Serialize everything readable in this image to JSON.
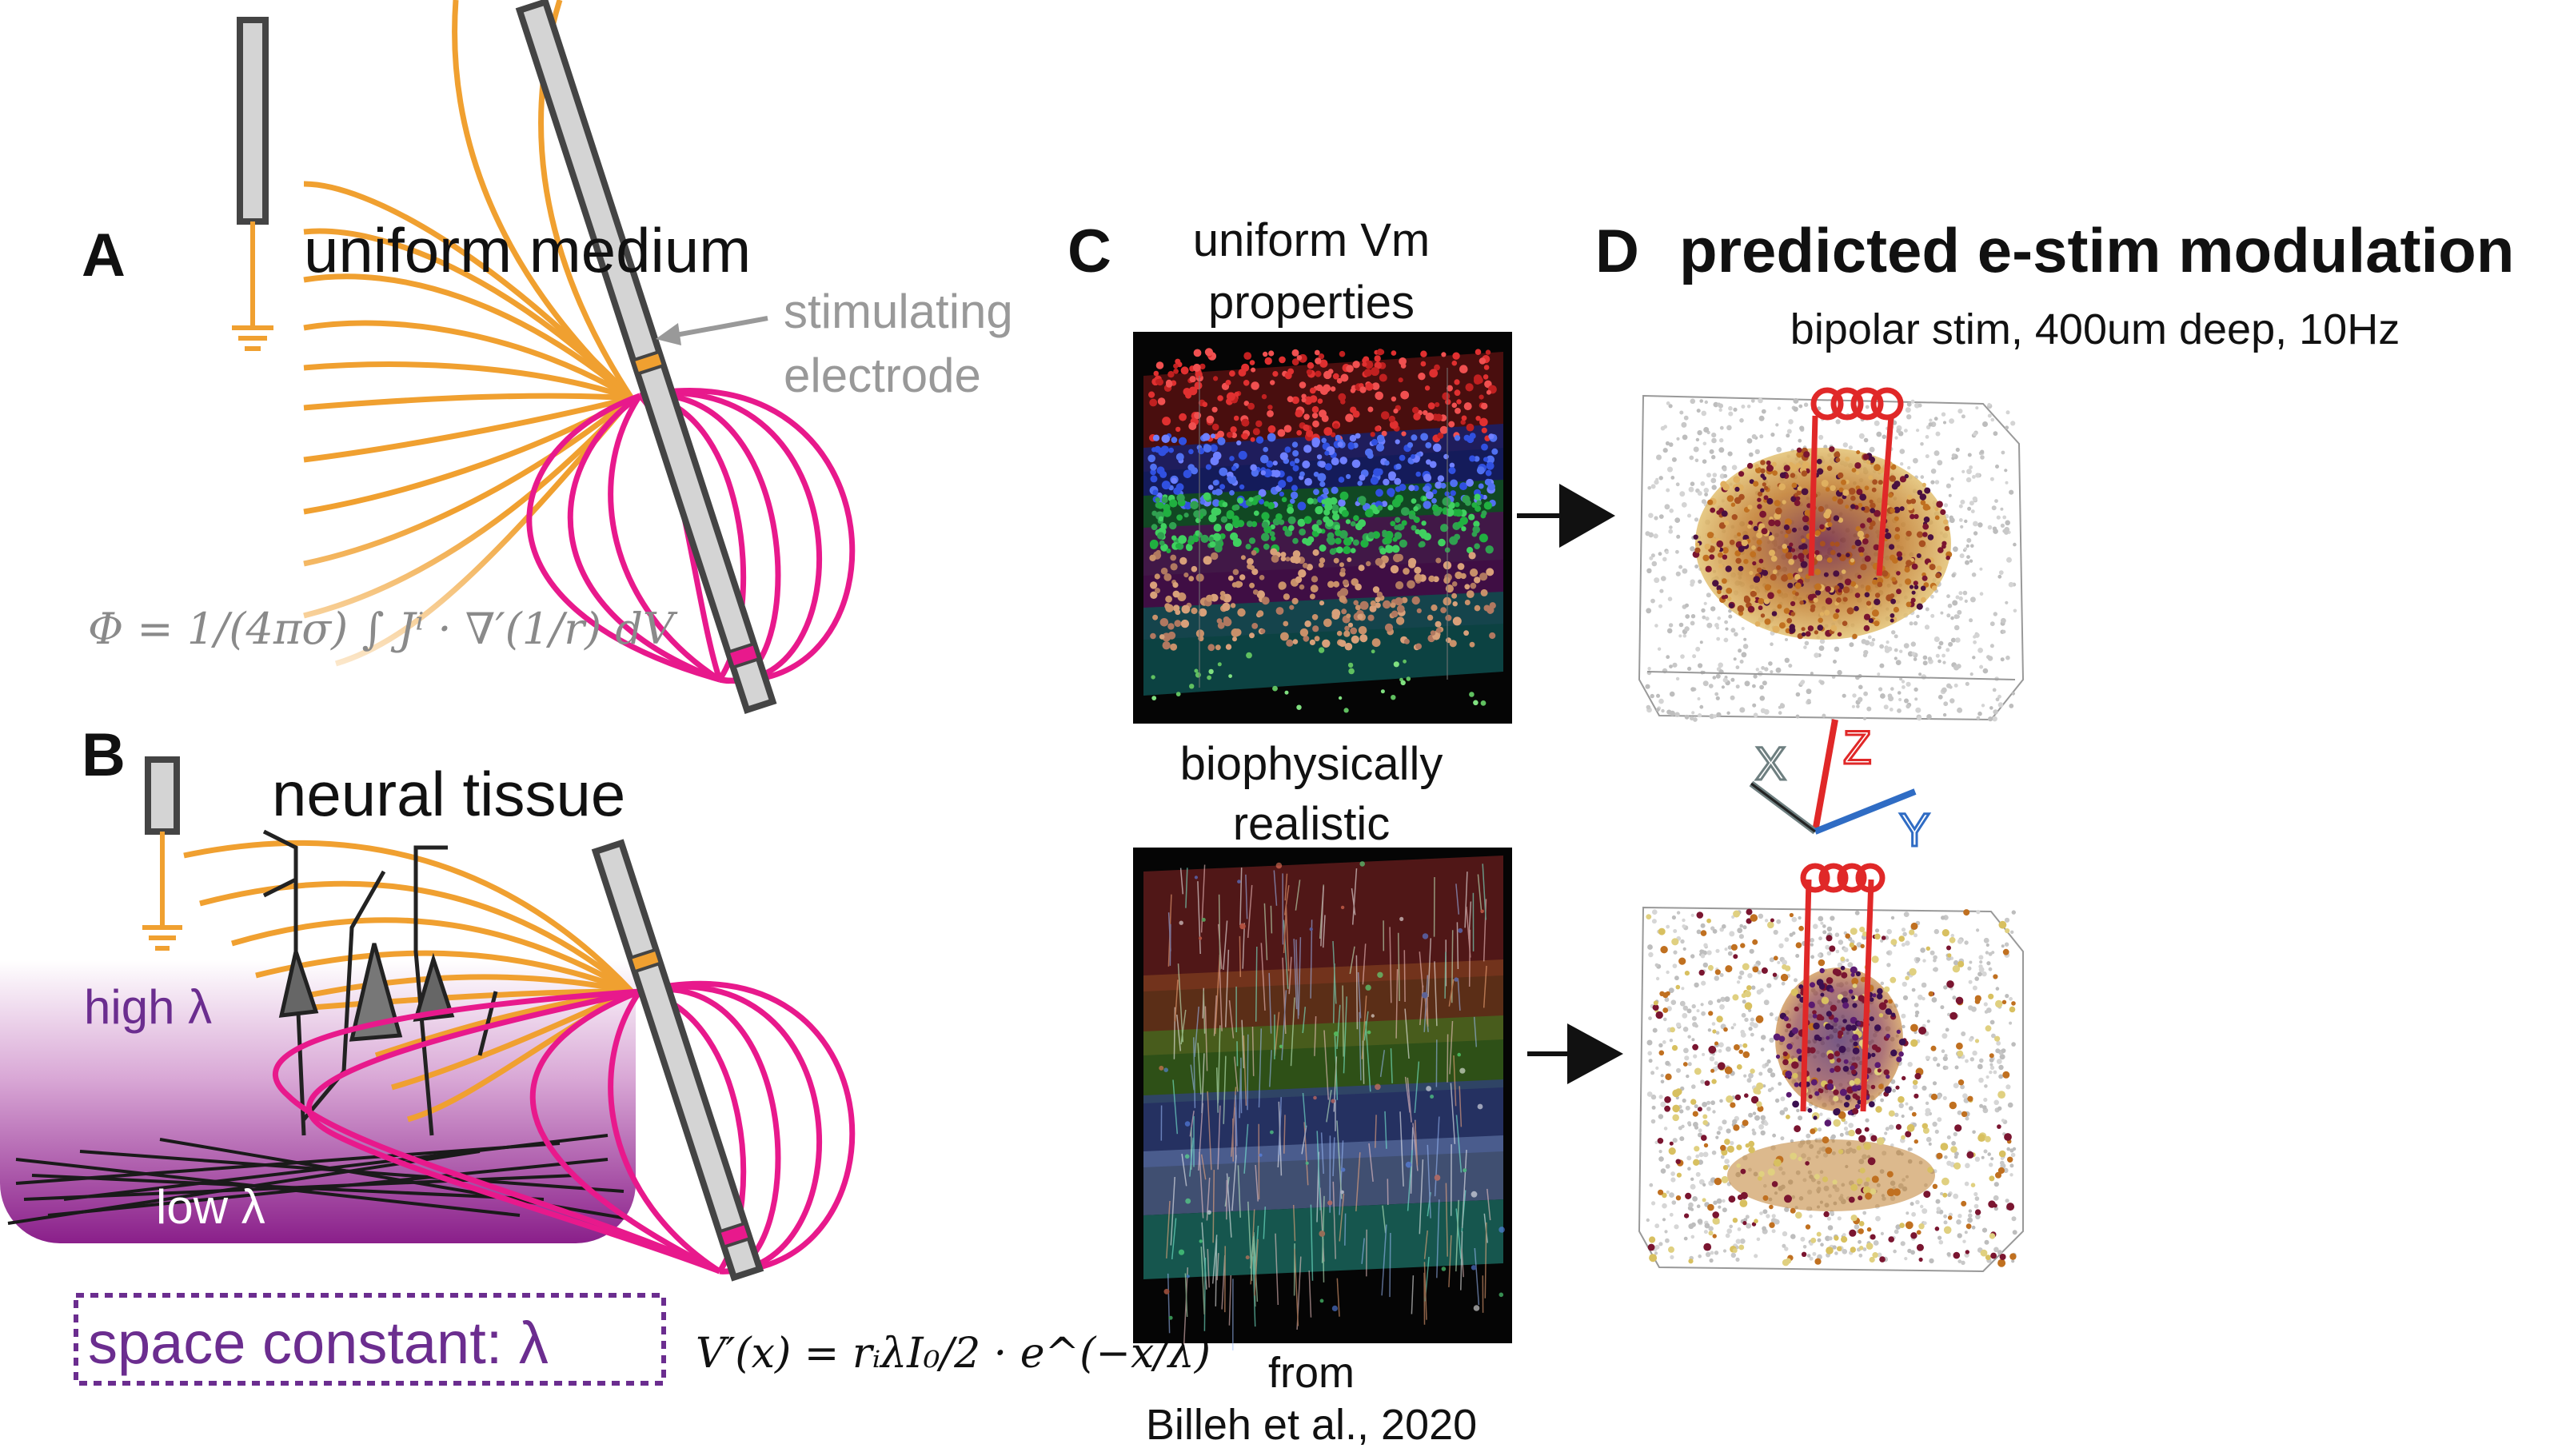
{
  "panels": {
    "a": {
      "letter": "A",
      "title": "uniform medium",
      "electrode_label_1": "stimulating",
      "electrode_label_2": "electrode",
      "equation": "Φ = 1/(4πσ) ∫ Jⁱ · ∇′(1/r) dV"
    },
    "b": {
      "letter": "B",
      "title": "neural tissue",
      "high_label": "high λ",
      "low_label": "low λ",
      "space_constant": "space constant: λ",
      "equation": "V′(x) = rᵢλI₀/2 · e^(−x/λ)"
    },
    "c": {
      "letter": "C",
      "top_title_1": "uniform Vm",
      "top_title_2": "properties",
      "mid_title_1": "biophysically",
      "mid_title_2": "realistic",
      "credit_1": "from",
      "credit_2": "Billeh et al., 2020"
    },
    "d": {
      "letter": "D",
      "title": "predicted e-stim modulation",
      "subtitle": "bipolar stim, 400um deep, 10Hz",
      "axis_x": "X",
      "axis_y": "Y",
      "axis_z": "Z"
    }
  },
  "colors": {
    "field_orange": "#f0a030",
    "field_magenta": "#e8198c",
    "purple": "#6b2d8f",
    "axis_red": "#e02828",
    "axis_blue": "#2f6cc4",
    "axis_grey": "#6e7f80",
    "gray_text": "#999999"
  }
}
